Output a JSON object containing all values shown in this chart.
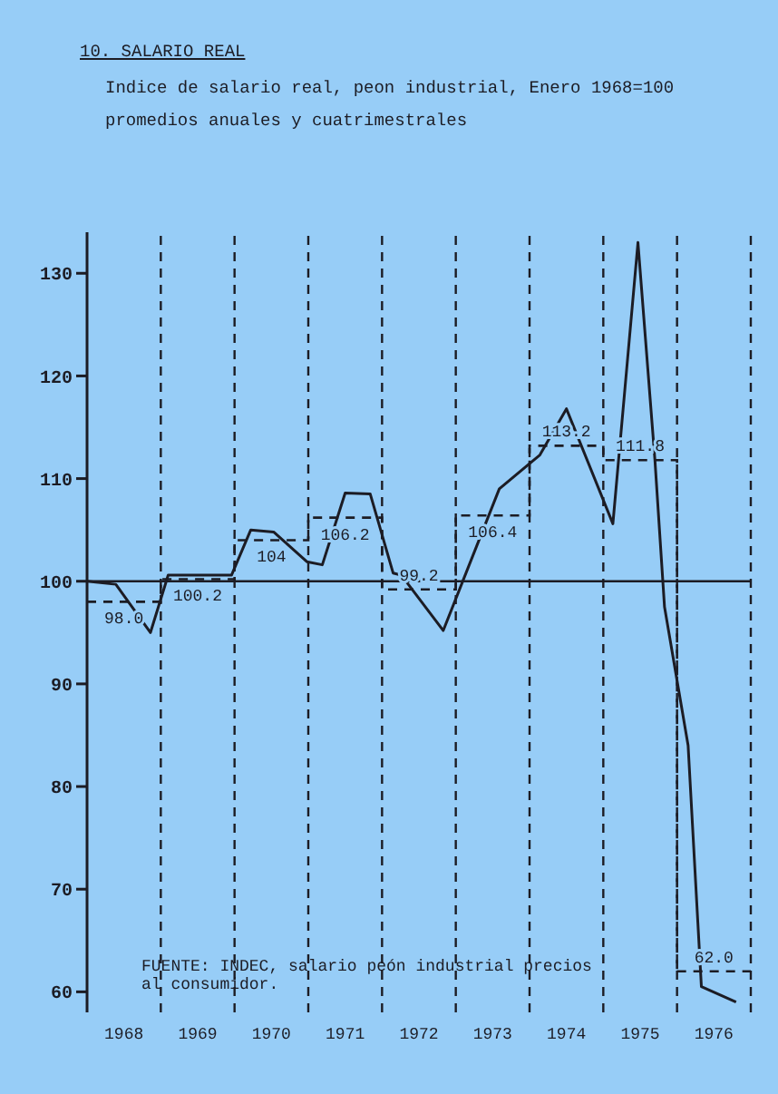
{
  "chart_data": {
    "type": "line",
    "title": "10. SALARIO REAL",
    "subtitle": "Indice de salario real, peon industrial, Enero 1968=100\npromedios anuales y cuatrimestrales",
    "annotations": [
      "FUENTE: INDEC, salario peón industrial precios al consumidor."
    ],
    "xlim": [
      1968,
      1977
    ],
    "xticks": [
      {
        "value": 1968.5,
        "label": "1968"
      },
      {
        "value": 1969.5,
        "label": "1969"
      },
      {
        "value": 1970.5,
        "label": "1970"
      },
      {
        "value": 1971.5,
        "label": "1971"
      },
      {
        "value": 1972.5,
        "label": "1972"
      },
      {
        "value": 1973.5,
        "label": "1973"
      },
      {
        "value": 1974.5,
        "label": "1974"
      },
      {
        "value": 1975.5,
        "label": "1975"
      },
      {
        "value": 1976.5,
        "label": "1976"
      }
    ],
    "ylim": [
      58,
      134
    ],
    "yticks": [
      60,
      70,
      80,
      90,
      100,
      110,
      120,
      130
    ],
    "grid": false,
    "marker": "none",
    "ref_lines": [
      {
        "axis": "y",
        "value": 100,
        "line_style": "solid",
        "color": "#1c1c24"
      },
      {
        "axis": "x",
        "value": 1969,
        "line_style": "dashed",
        "color": "#1c1c24"
      },
      {
        "axis": "x",
        "value": 1970,
        "line_style": "dashed",
        "color": "#1c1c24"
      },
      {
        "axis": "x",
        "value": 1971,
        "line_style": "dashed",
        "color": "#1c1c24"
      },
      {
        "axis": "x",
        "value": 1972,
        "line_style": "dashed",
        "color": "#1c1c24"
      },
      {
        "axis": "x",
        "value": 1973,
        "line_style": "dashed",
        "color": "#1c1c24"
      },
      {
        "axis": "x",
        "value": 1974,
        "line_style": "dashed",
        "color": "#1c1c24"
      },
      {
        "axis": "x",
        "value": 1975,
        "line_style": "dashed",
        "color": "#1c1c24"
      },
      {
        "axis": "x",
        "value": 1976,
        "line_style": "dashed",
        "color": "#1c1c24"
      },
      {
        "axis": "x",
        "value": 1977,
        "line_style": "dashed",
        "color": "#1c1c24"
      }
    ],
    "series": [
      {
        "color": "#1c1c24",
        "line_style": "solid",
        "x": [
          1968.0,
          1968.39,
          1968.86,
          1969.1,
          1969.96,
          1970.22,
          1970.53,
          1970.98,
          1971.19,
          1971.5,
          1971.84,
          1972.15,
          1972.26,
          1972.83,
          1973.59,
          1974.14,
          1974.5,
          1975.13,
          1975.47,
          1975.7,
          1975.83,
          1976.15,
          1976.33,
          1976.8
        ],
        "values": [
          100,
          99.7,
          95,
          100.6,
          100.6,
          105,
          104.8,
          101.9,
          101.6,
          108.6,
          108.5,
          100.8,
          100.6,
          95.2,
          109,
          112.3,
          116.8,
          105.6,
          133,
          111.8,
          97.5,
          84,
          60.5,
          59
        ]
      },
      {
        "type": "step",
        "color": "#1c1c24",
        "line_style": "dashed",
        "x": [
          1968,
          1969,
          1970,
          1971,
          1972,
          1973,
          1974,
          1975,
          1976
        ],
        "values": [
          98.0,
          100.2,
          104,
          106.2,
          99.2,
          106.4,
          113.2,
          111.8,
          62.0
        ],
        "value_labels": [
          "98.0",
          "100.2",
          "104",
          "106.2",
          "99.2",
          "106.4",
          "113.2",
          "111.8",
          "62.0"
        ]
      }
    ]
  }
}
